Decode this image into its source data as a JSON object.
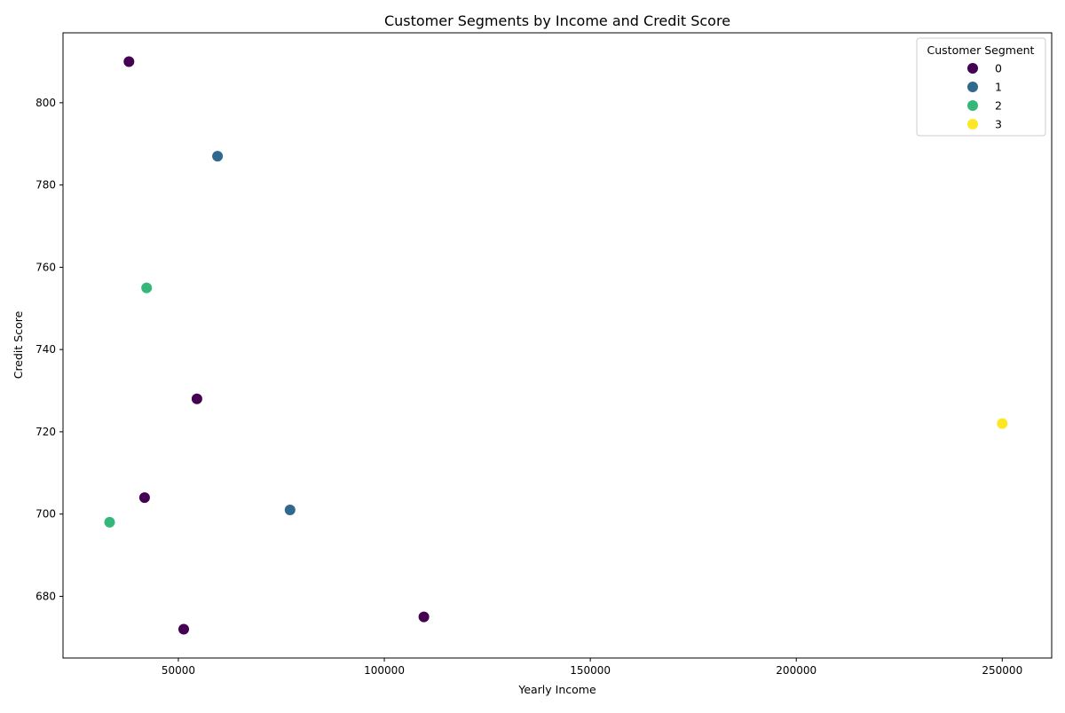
{
  "chart_data": {
    "type": "scatter",
    "title": "Customer Segments by Income and Credit Score",
    "xlabel": "Yearly Income",
    "ylabel": "Credit Score",
    "xlim": [
      22000,
      262000
    ],
    "ylim": [
      665,
      817
    ],
    "xticks": [
      50000,
      100000,
      150000,
      200000,
      250000
    ],
    "yticks": [
      680,
      700,
      720,
      740,
      760,
      780,
      800
    ],
    "grid": false,
    "legend": {
      "title": "Customer Segment",
      "placement": "top-right",
      "entries": [
        {
          "label": "0",
          "color": "#440154"
        },
        {
          "label": "1",
          "color": "#31688e"
        },
        {
          "label": "2",
          "color": "#35b779"
        },
        {
          "label": "3",
          "color": "#fde725"
        }
      ]
    },
    "series": [
      {
        "name": "0",
        "color": "#440154",
        "points": [
          {
            "x": 38000,
            "y": 810
          },
          {
            "x": 54500,
            "y": 728
          },
          {
            "x": 41800,
            "y": 704
          },
          {
            "x": 109600,
            "y": 675
          },
          {
            "x": 51300,
            "y": 672
          }
        ]
      },
      {
        "name": "1",
        "color": "#31688e",
        "points": [
          {
            "x": 59500,
            "y": 787
          },
          {
            "x": 77100,
            "y": 701
          }
        ]
      },
      {
        "name": "2",
        "color": "#35b779",
        "points": [
          {
            "x": 42300,
            "y": 755
          },
          {
            "x": 33300,
            "y": 698
          }
        ]
      },
      {
        "name": "3",
        "color": "#fde725",
        "points": [
          {
            "x": 250000,
            "y": 722
          }
        ]
      }
    ]
  }
}
